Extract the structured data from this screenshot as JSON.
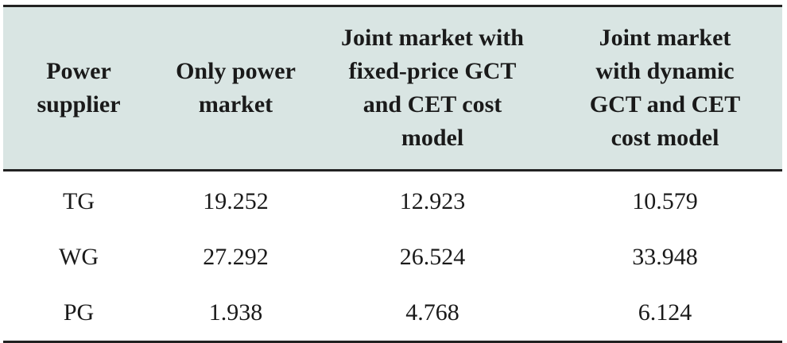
{
  "table": {
    "headers": [
      "Power\nsupplier",
      "Only power\nmarket",
      "Joint market with\nfixed-price GCT\nand CET cost\nmodel",
      "Joint market\nwith dynamic\nGCT and CET\ncost model"
    ],
    "rows": [
      [
        "TG",
        "19.252",
        "12.923",
        "10.579"
      ],
      [
        "WG",
        "27.292",
        "26.524",
        "33.948"
      ],
      [
        "PG",
        "1.938",
        "4.768",
        "6.124"
      ]
    ]
  }
}
